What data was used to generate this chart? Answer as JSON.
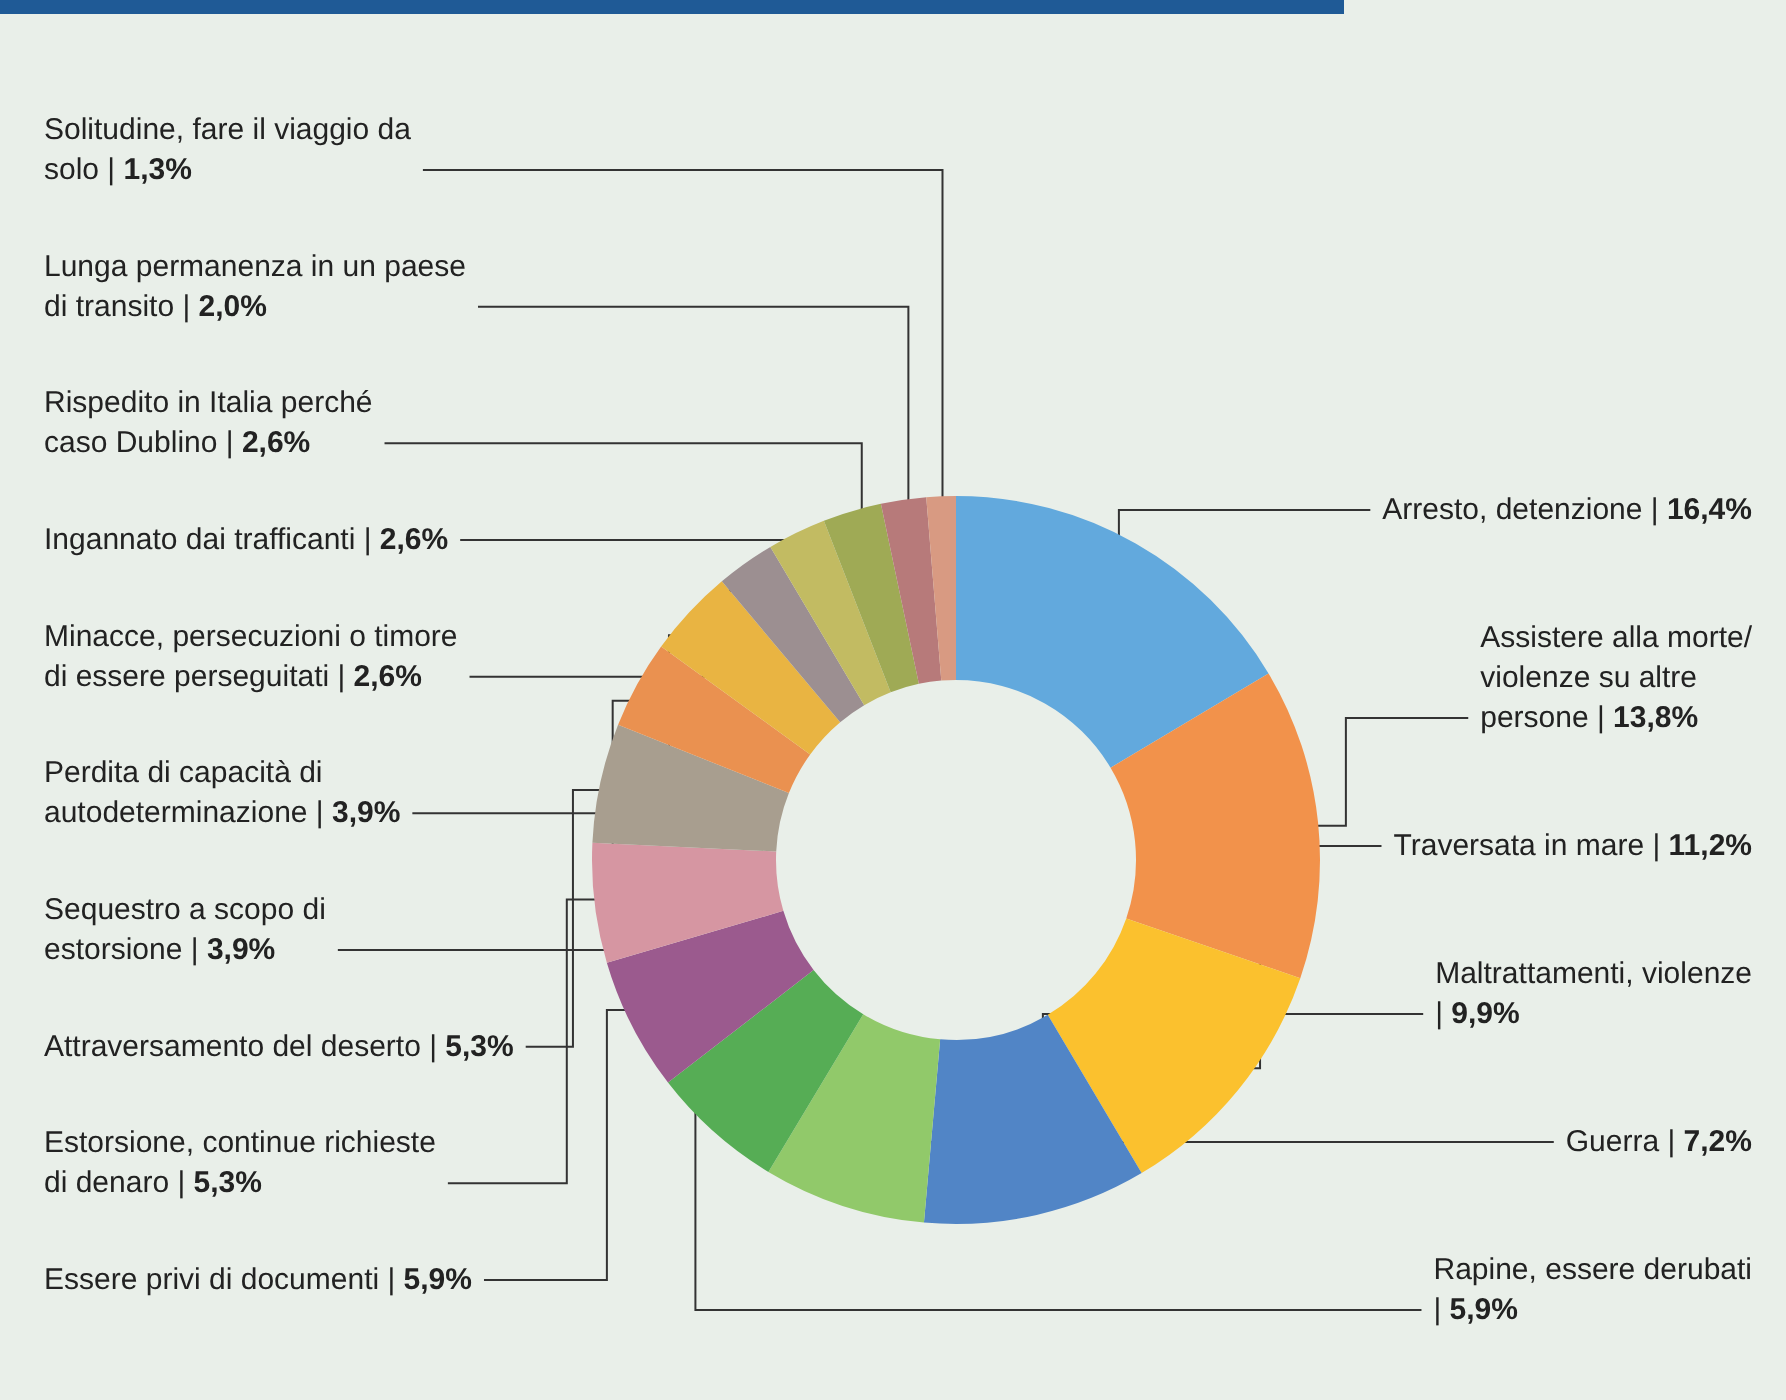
{
  "chart_data": {
    "type": "donut",
    "categories": [
      "Arresto, detenzione |",
      "Assistere alla morte/ violenze su altre persone |",
      "Traversata in mare |",
      "Maltrattamenti, violenze |",
      "Guerra |",
      "Rapine, essere derubati |",
      "Essere privi di documenti |",
      "Estorsione, continue richieste di denaro |",
      "Attraversamento del deserto |",
      "Sequestro a scopo di estorsione |",
      "Perdita di capacità di autodeterminazione |",
      "Minacce, persecuzioni o timore di essere perseguitati |",
      "Ingannato dai trafficanti |",
      "Rispedito in Italia perché caso Dublino |",
      "Lunga permanenza in un paese di transito |",
      "Solitudine, fare il viaggio da solo |"
    ],
    "values": [
      16.4,
      13.8,
      11.2,
      9.9,
      7.2,
      5.9,
      5.9,
      5.3,
      5.3,
      3.9,
      3.9,
      2.6,
      2.6,
      2.6,
      2.0,
      1.3
    ],
    "value_labels": [
      "16,4%",
      "13,8%",
      "11,2%",
      "9,9%",
      "7,2%",
      "5,9%",
      "5,9%",
      "5,3%",
      "5,3%",
      "3,9%",
      "3,9%",
      "2,6%",
      "2,6%",
      "2,6%",
      "2,0%",
      "1,3%"
    ],
    "colors": [
      "#62a9dd",
      "#f2924b",
      "#fbc12e",
      "#5185c6",
      "#91c96a",
      "#56ad55",
      "#9b5a8e",
      "#d696a2",
      "#a89e8f",
      "#ea9150",
      "#e9b442",
      "#9c8f91",
      "#c2bb62",
      "#9faa55",
      "#b77a7a",
      "#d89a82"
    ],
    "legend": false
  }
}
